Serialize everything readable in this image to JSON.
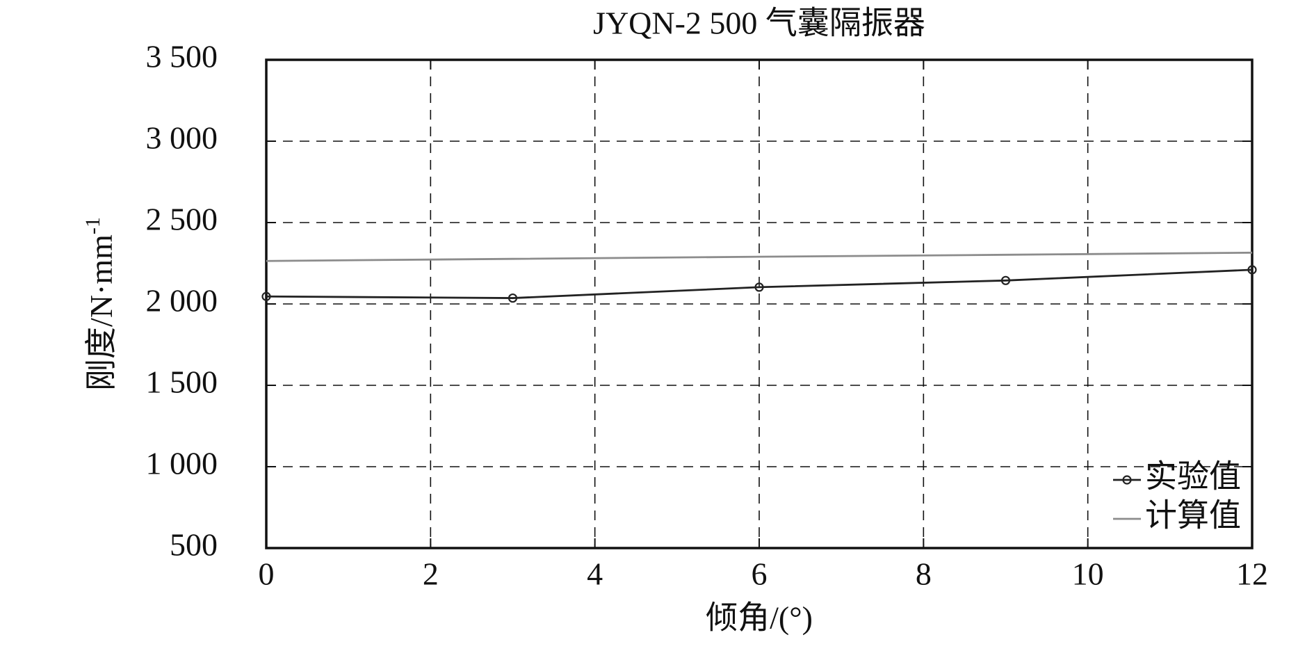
{
  "chart_data": {
    "type": "line",
    "title": "JYQN-2 500 气囊隔振器",
    "xlabel": "倾角/(°)",
    "ylabel": {
      "text": "刚度/N·mm",
      "superscript": "-1"
    },
    "series": [
      {
        "name": "实验值",
        "color": "#222222",
        "marker": "circle",
        "x": [
          0,
          3,
          6,
          9,
          12
        ],
        "values": [
          2046,
          2036,
          2103,
          2144,
          2210
        ]
      },
      {
        "name": "计算值",
        "color": "#8c8c8c",
        "marker": "none",
        "x": [
          0,
          3,
          6,
          9,
          12
        ],
        "values": [
          2264,
          2277,
          2290,
          2302,
          2315
        ]
      }
    ],
    "xlim": [
      0,
      12
    ],
    "xticks": [
      0,
      2,
      4,
      6,
      8,
      10,
      12
    ],
    "ylim": [
      500,
      3500
    ],
    "yticks": [
      500,
      {
        "value": 1000,
        "label": "1 000"
      },
      {
        "value": 1500,
        "label": "1 500"
      },
      {
        "value": 2000,
        "label": "2 000"
      },
      {
        "value": 2500,
        "label": "2 500"
      },
      {
        "value": 3000,
        "label": "3 000"
      },
      {
        "value": 3500,
        "label": "3 500"
      }
    ],
    "grid": true,
    "legend": "lower right"
  }
}
